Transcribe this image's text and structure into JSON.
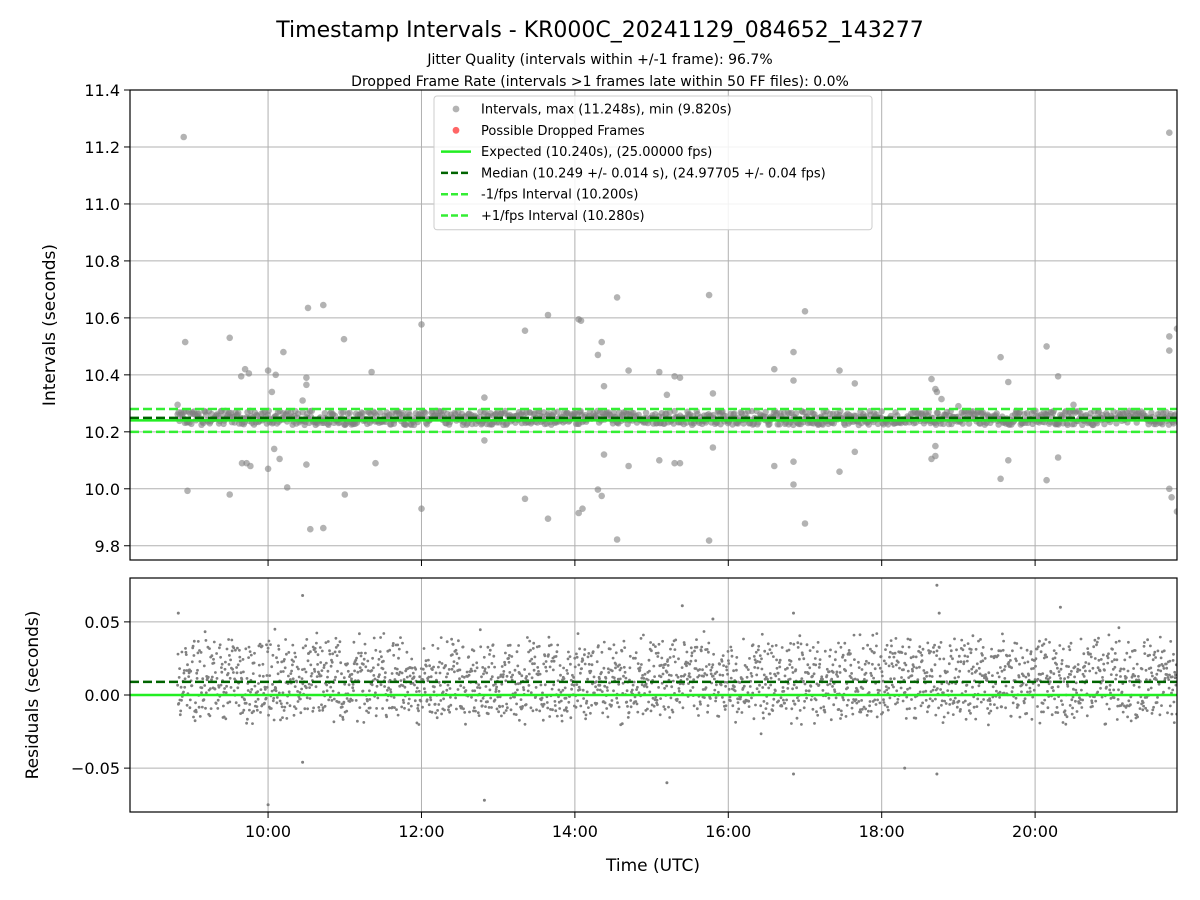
{
  "chart_data": {
    "title": "Timestamp Intervals - KR000C_20241129_084652_143277",
    "subtitle_lines": [
      "Jitter Quality (intervals within +/-1 frame): 96.7%",
      "Dropped Frame Rate (intervals >1 frames late within 50 FF files): 0.0%"
    ],
    "colors": {
      "points": "#808080",
      "dropped": "#ff6666",
      "expected": "#22ee22",
      "median": "#006400",
      "interval_bounds": "#33ee33",
      "grid": "#b0b0b0"
    },
    "panels": [
      {
        "id": "intervals",
        "type": "scatter",
        "ylabel": "Intervals (seconds)",
        "xlim_hours": [
          8.2,
          21.85
        ],
        "ylim": [
          9.75,
          11.4
        ],
        "y_ticks": [
          9.8,
          10.0,
          10.2,
          10.4,
          10.6,
          10.8,
          11.0,
          11.2,
          11.4
        ],
        "y_tick_labels": [
          "9.8",
          "10.0",
          "10.2",
          "10.4",
          "10.6",
          "10.8",
          "11.0",
          "11.2",
          "11.4"
        ],
        "band": {
          "x_start_hours": 8.82,
          "x_end_hours": 21.85,
          "center": 10.249,
          "half_width": 0.025
        },
        "hlines": [
          {
            "y": 10.24,
            "style": "solid",
            "color_key": "expected"
          },
          {
            "y": 10.249,
            "style": "dashed",
            "color_key": "median"
          },
          {
            "y": 10.2,
            "style": "dashed",
            "color_key": "interval_bounds"
          },
          {
            "y": 10.28,
            "style": "dashed",
            "color_key": "interval_bounds"
          }
        ],
        "outliers": [
          [
            8.9,
            11.235
          ],
          [
            8.92,
            10.515
          ],
          [
            8.95,
            9.993
          ],
          [
            8.82,
            10.295
          ],
          [
            9.5,
            10.53
          ],
          [
            9.5,
            9.98
          ],
          [
            9.65,
            10.395
          ],
          [
            9.7,
            10.42
          ],
          [
            9.75,
            10.405
          ],
          [
            9.66,
            10.09
          ],
          [
            9.72,
            10.09
          ],
          [
            9.77,
            10.08
          ],
          [
            10.0,
            10.415
          ],
          [
            10.1,
            10.4
          ],
          [
            10.05,
            10.34
          ],
          [
            10.0,
            10.07
          ],
          [
            10.08,
            10.14
          ],
          [
            10.15,
            10.105
          ],
          [
            10.2,
            10.48
          ],
          [
            10.25,
            10.005
          ],
          [
            10.45,
            10.31
          ],
          [
            10.5,
            10.39
          ],
          [
            10.5,
            10.365
          ],
          [
            10.5,
            10.085
          ],
          [
            10.52,
            10.635
          ],
          [
            10.72,
            10.645
          ],
          [
            10.55,
            9.858
          ],
          [
            10.72,
            9.862
          ],
          [
            10.99,
            10.525
          ],
          [
            11.0,
            9.98
          ],
          [
            11.35,
            10.41
          ],
          [
            11.4,
            10.09
          ],
          [
            12.0,
            10.577
          ],
          [
            12.0,
            9.93
          ],
          [
            12.82,
            10.32
          ],
          [
            12.82,
            10.17
          ],
          [
            13.35,
            10.555
          ],
          [
            13.35,
            9.965
          ],
          [
            13.65,
            10.61
          ],
          [
            13.65,
            9.895
          ],
          [
            14.05,
            10.595
          ],
          [
            14.08,
            10.59
          ],
          [
            14.05,
            9.915
          ],
          [
            14.1,
            9.93
          ],
          [
            14.3,
            10.47
          ],
          [
            14.35,
            10.515
          ],
          [
            14.38,
            10.36
          ],
          [
            14.38,
            10.12
          ],
          [
            14.3,
            9.997
          ],
          [
            14.35,
            9.975
          ],
          [
            14.55,
            10.672
          ],
          [
            14.55,
            9.822
          ],
          [
            14.7,
            10.415
          ],
          [
            14.7,
            10.08
          ],
          [
            15.1,
            10.41
          ],
          [
            15.1,
            10.1
          ],
          [
            15.3,
            10.395
          ],
          [
            15.37,
            10.39
          ],
          [
            15.3,
            10.09
          ],
          [
            15.37,
            10.09
          ],
          [
            15.2,
            10.33
          ],
          [
            15.75,
            10.68
          ],
          [
            15.75,
            9.818
          ],
          [
            15.8,
            10.335
          ],
          [
            15.8,
            10.145
          ],
          [
            16.6,
            10.42
          ],
          [
            16.6,
            10.08
          ],
          [
            16.85,
            10.48
          ],
          [
            16.85,
            10.38
          ],
          [
            16.85,
            10.095
          ],
          [
            16.85,
            10.015
          ],
          [
            17.0,
            10.623
          ],
          [
            17.0,
            9.878
          ],
          [
            17.45,
            10.415
          ],
          [
            17.45,
            10.06
          ],
          [
            17.65,
            10.37
          ],
          [
            17.65,
            10.13
          ],
          [
            18.65,
            10.385
          ],
          [
            18.7,
            10.35
          ],
          [
            18.72,
            10.34
          ],
          [
            18.78,
            10.315
          ],
          [
            18.7,
            10.15
          ],
          [
            18.7,
            10.115
          ],
          [
            18.65,
            10.105
          ],
          [
            19.55,
            10.462
          ],
          [
            19.55,
            10.035
          ],
          [
            19.65,
            10.375
          ],
          [
            19.65,
            10.1
          ],
          [
            20.15,
            10.5
          ],
          [
            20.15,
            10.03
          ],
          [
            20.3,
            10.395
          ],
          [
            20.3,
            10.11
          ],
          [
            21.75,
            11.25
          ],
          [
            21.75,
            10.535
          ],
          [
            21.75,
            10.485
          ],
          [
            21.85,
            10.562
          ],
          [
            21.75,
            10.0
          ],
          [
            21.78,
            9.97
          ],
          [
            21.85,
            9.92
          ],
          [
            20.5,
            10.295
          ],
          [
            19.0,
            10.29
          ]
        ]
      },
      {
        "id": "residuals",
        "type": "scatter",
        "ylabel": "Residuals (seconds)",
        "xlabel": "Time (UTC)",
        "xlim_hours": [
          8.2,
          21.85
        ],
        "ylim": [
          -0.08,
          0.08
        ],
        "y_ticks": [
          -0.05,
          0.0,
          0.05
        ],
        "y_tick_labels": [
          "−0.05",
          "0.00",
          "0.05"
        ],
        "x_ticks": [
          10,
          12,
          14,
          16,
          18,
          20
        ],
        "x_tick_labels": [
          "10:00",
          "12:00",
          "14:00",
          "16:00",
          "18:00",
          "20:00"
        ],
        "x_range_hours": [
          8.82,
          21.85
        ],
        "hlines": [
          {
            "y": 0.0,
            "style": "solid",
            "color_key": "expected"
          },
          {
            "y": 0.009,
            "style": "dashed",
            "color_key": "median"
          }
        ],
        "outliers": [
          [
            8.83,
            0.056
          ],
          [
            10.45,
            0.068
          ],
          [
            10.0,
            -0.075
          ],
          [
            10.45,
            -0.046
          ],
          [
            12.82,
            -0.072
          ],
          [
            15.2,
            -0.06
          ],
          [
            15.4,
            0.061
          ],
          [
            15.8,
            0.052
          ],
          [
            16.85,
            0.056
          ],
          [
            16.85,
            -0.054
          ],
          [
            18.3,
            -0.05
          ],
          [
            18.72,
            0.075
          ],
          [
            18.72,
            -0.054
          ],
          [
            18.75,
            0.056
          ],
          [
            20.33,
            0.06
          ]
        ]
      }
    ],
    "legend": {
      "location": "upper center",
      "entries": [
        {
          "label": "Intervals, max (11.248s), min (9.820s)",
          "kind": "marker",
          "color_key": "points"
        },
        {
          "label": "Possible Dropped Frames",
          "kind": "marker",
          "color_key": "dropped"
        },
        {
          "label": "Expected (10.240s), (25.00000 fps)",
          "kind": "solid",
          "color_key": "expected"
        },
        {
          "label": "Median (10.249 +/- 0.014 s), (24.97705 +/- 0.04 fps)",
          "kind": "dashed",
          "color_key": "median"
        },
        {
          "label": "-1/fps Interval (10.200s)",
          "kind": "dashed",
          "color_key": "interval_bounds"
        },
        {
          "label": "+1/fps Interval (10.280s)",
          "kind": "dashed",
          "color_key": "interval_bounds"
        }
      ]
    }
  }
}
